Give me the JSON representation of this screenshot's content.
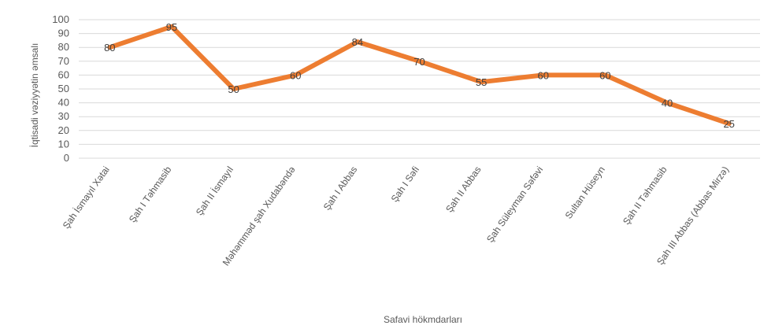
{
  "chart_data": {
    "type": "line",
    "title": "",
    "xlabel": "Safavi hökmdarları",
    "ylabel": "İqtisadi vəziyyətin əmsalı",
    "ylim": [
      0,
      100
    ],
    "ytick_step": 10,
    "grid": true,
    "legend": "none",
    "line_color": "#ED7D31",
    "categories": [
      "Şah İsmayıl Xətai",
      "Şah I Təhmasib",
      "Şah II İsmayıl",
      "Məhəmməd şah Xudabəndə",
      "Şah I Abbas",
      "Şah I Səfi",
      "Şah II Abbas",
      "Şah Süleyman Səfəvi",
      "Sultan Hüseyn",
      "Şah II Təhmasib",
      "Şah III Abbas (Abbas Mirzə)"
    ],
    "values": [
      80,
      95,
      50,
      60,
      84,
      70,
      55,
      60,
      60,
      40,
      25
    ]
  }
}
